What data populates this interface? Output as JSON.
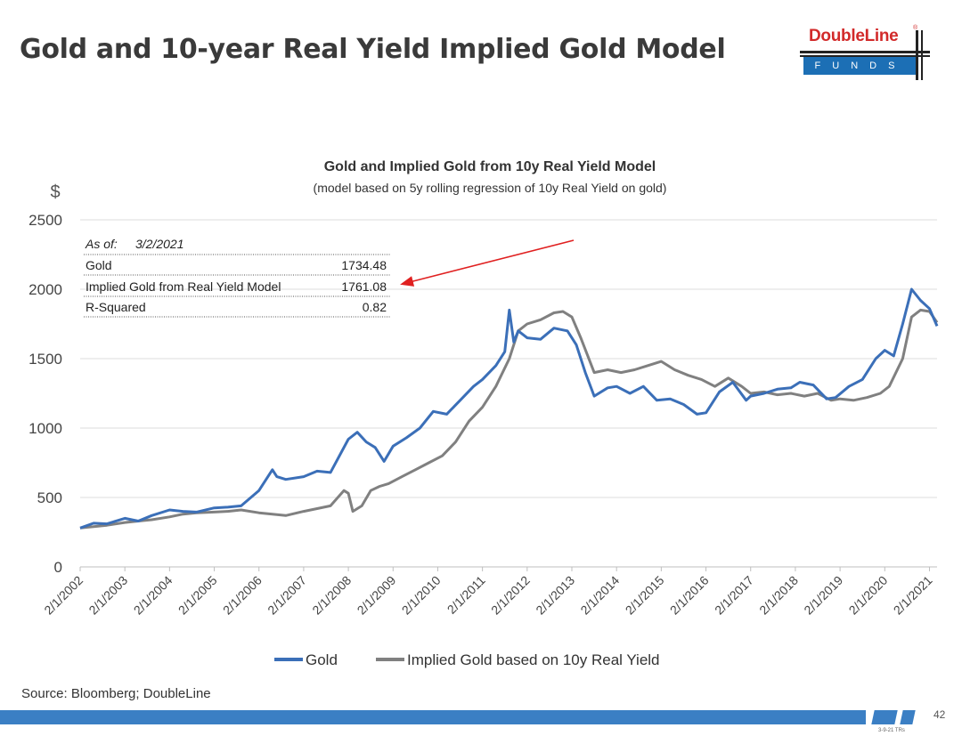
{
  "slide": {
    "title": "Gold and 10-year Real Yield Implied Gold Model",
    "source": "Source: Bloomberg; DoubleLine",
    "page_number": "42",
    "footer_note": "3-9-21 TRs"
  },
  "logo": {
    "name": "DoubleLine",
    "sub": "FUNDS",
    "registered": "®"
  },
  "colors": {
    "gold": "#3b6fb8",
    "implied": "#808080",
    "arrow": "#e02020",
    "footer": "#3b7fc4"
  },
  "chart_data": {
    "type": "line",
    "title": "Gold and Implied Gold from 10y Real Yield Model",
    "subtitle": "(model based on 5y rolling regression of 10y Real Yield on gold)",
    "ylabel": "$",
    "ylim": [
      0,
      2500
    ],
    "yticks": [
      0,
      500,
      1000,
      1500,
      2000,
      2500
    ],
    "xlim": [
      2002.0,
      2021.17
    ],
    "xticks": [
      "2/1/2002",
      "2/1/2003",
      "2/1/2004",
      "2/1/2005",
      "2/1/2006",
      "2/1/2007",
      "2/1/2008",
      "2/1/2009",
      "2/1/2010",
      "2/1/2011",
      "2/1/2012",
      "2/1/2013",
      "2/1/2014",
      "2/1/2015",
      "2/1/2016",
      "2/1/2017",
      "2/1/2018",
      "2/1/2019",
      "2/1/2020",
      "2/1/2021"
    ],
    "grid": "horizontal",
    "legend": "bottom",
    "series": [
      {
        "name": "Gold",
        "x": [
          2002.0,
          2002.3,
          2002.6,
          2003.0,
          2003.3,
          2003.6,
          2004.0,
          2004.3,
          2004.6,
          2005.0,
          2005.3,
          2005.6,
          2006.0,
          2006.3,
          2006.4,
          2006.6,
          2007.0,
          2007.3,
          2007.6,
          2008.0,
          2008.2,
          2008.4,
          2008.6,
          2008.8,
          2009.0,
          2009.3,
          2009.6,
          2009.9,
          2010.2,
          2010.5,
          2010.8,
          2011.0,
          2011.3,
          2011.5,
          2011.6,
          2011.7,
          2011.8,
          2012.0,
          2012.3,
          2012.6,
          2012.9,
          2013.1,
          2013.3,
          2013.5,
          2013.8,
          2014.0,
          2014.3,
          2014.6,
          2014.9,
          2015.2,
          2015.5,
          2015.8,
          2016.0,
          2016.3,
          2016.6,
          2016.9,
          2017.0,
          2017.3,
          2017.6,
          2017.9,
          2018.1,
          2018.4,
          2018.7,
          2018.9,
          2019.2,
          2019.5,
          2019.8,
          2020.0,
          2020.2,
          2020.4,
          2020.6,
          2020.8,
          2021.0,
          2021.17
        ],
        "y": [
          280,
          315,
          310,
          350,
          330,
          370,
          410,
          400,
          395,
          425,
          430,
          440,
          550,
          700,
          650,
          630,
          650,
          690,
          680,
          920,
          970,
          900,
          860,
          760,
          870,
          930,
          1000,
          1120,
          1100,
          1200,
          1300,
          1350,
          1450,
          1550,
          1850,
          1620,
          1700,
          1650,
          1640,
          1720,
          1700,
          1600,
          1400,
          1230,
          1290,
          1300,
          1250,
          1300,
          1200,
          1210,
          1170,
          1100,
          1110,
          1260,
          1330,
          1200,
          1230,
          1250,
          1280,
          1290,
          1330,
          1310,
          1210,
          1220,
          1300,
          1350,
          1500,
          1560,
          1520,
          1750,
          2000,
          1920,
          1860,
          1734.48
        ]
      },
      {
        "name": "Implied Gold based on 10y Real Yield",
        "x": [
          2002.0,
          2002.3,
          2002.6,
          2003.0,
          2003.3,
          2003.6,
          2004.0,
          2004.3,
          2004.6,
          2005.0,
          2005.3,
          2005.6,
          2006.0,
          2006.3,
          2006.6,
          2007.0,
          2007.3,
          2007.6,
          2007.9,
          2008.0,
          2008.1,
          2008.3,
          2008.5,
          2008.7,
          2008.9,
          2009.2,
          2009.5,
          2009.8,
          2010.1,
          2010.4,
          2010.7,
          2011.0,
          2011.3,
          2011.6,
          2011.8,
          2012.0,
          2012.3,
          2012.6,
          2012.8,
          2013.0,
          2013.2,
          2013.5,
          2013.8,
          2014.1,
          2014.4,
          2014.7,
          2015.0,
          2015.3,
          2015.6,
          2015.9,
          2016.2,
          2016.5,
          2016.8,
          2017.0,
          2017.3,
          2017.6,
          2017.9,
          2018.2,
          2018.5,
          2018.8,
          2019.0,
          2019.3,
          2019.6,
          2019.9,
          2020.1,
          2020.4,
          2020.6,
          2020.8,
          2021.0,
          2021.17
        ],
        "y": [
          280,
          290,
          300,
          320,
          330,
          340,
          360,
          380,
          390,
          395,
          400,
          410,
          390,
          380,
          370,
          400,
          420,
          440,
          550,
          530,
          400,
          440,
          550,
          580,
          600,
          650,
          700,
          750,
          800,
          900,
          1050,
          1150,
          1300,
          1500,
          1700,
          1750,
          1780,
          1830,
          1840,
          1800,
          1650,
          1400,
          1420,
          1400,
          1420,
          1450,
          1480,
          1420,
          1380,
          1350,
          1300,
          1360,
          1300,
          1250,
          1260,
          1240,
          1250,
          1230,
          1250,
          1200,
          1210,
          1200,
          1220,
          1250,
          1300,
          1500,
          1800,
          1850,
          1840,
          1761.08
        ]
      }
    ],
    "annotation": {
      "header_label": "As of:",
      "header_date": "3/2/2021",
      "rows": [
        {
          "label": "Gold",
          "value": "1734.48"
        },
        {
          "label": "Implied Gold from Real Yield Model",
          "value": "1761.08"
        },
        {
          "label": "R-Squared",
          "value": "0.82"
        }
      ]
    }
  }
}
